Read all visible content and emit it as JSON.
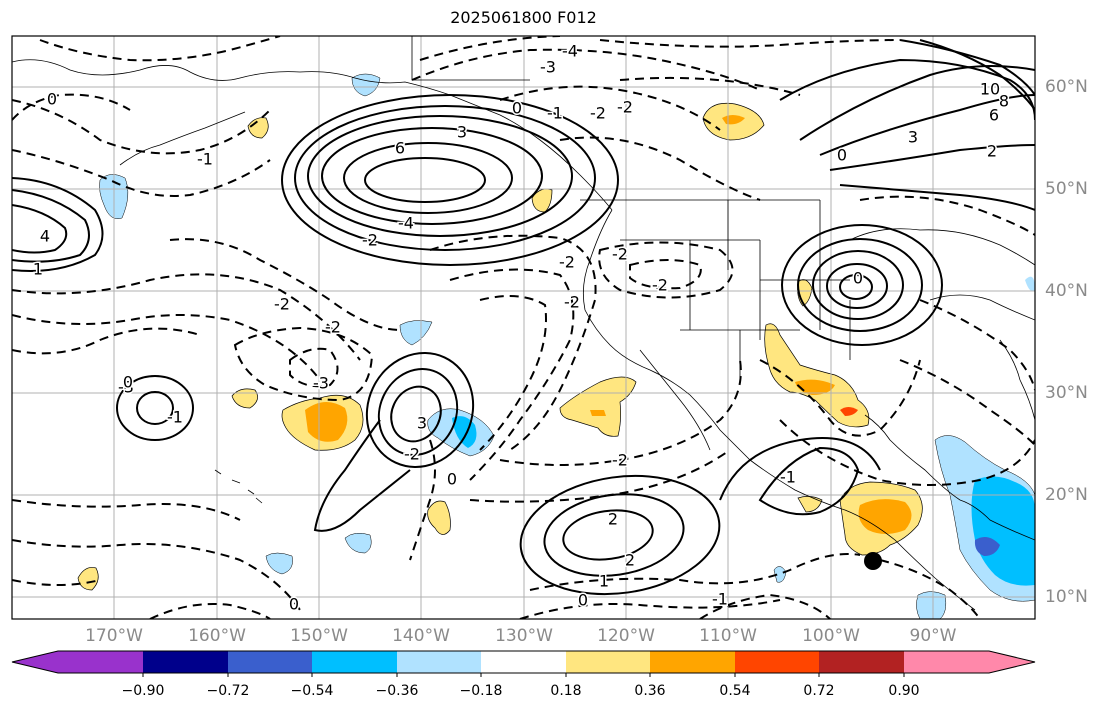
{
  "title": "2025061800 F012",
  "lat_labels": [
    "60°N",
    "50°N",
    "40°N",
    "30°N",
    "20°N",
    "10°N"
  ],
  "lon_labels": [
    "170°W",
    "160°W",
    "150°W",
    "140°W",
    "130°W",
    "120°W",
    "110°W",
    "100°W",
    "90°W"
  ],
  "colorbar": {
    "ticks": [
      "−0.90",
      "−0.72",
      "−0.54",
      "−0.36",
      "−0.18",
      "0.18",
      "0.36",
      "0.54",
      "0.72",
      "0.90"
    ],
    "colors": [
      "#9932cc",
      "#00008b",
      "#3a5fcd",
      "#00bfff",
      "#b0e2ff",
      "#ffffff",
      "#ffe680",
      "#ffa500",
      "#ff4500",
      "#b22222",
      "#ff88aa"
    ]
  },
  "contour_labels": [
    "-4",
    "-3",
    "0",
    "-1",
    "-2",
    "-2",
    "6",
    "3",
    "-4",
    "-2",
    "-2",
    "-2",
    "-2",
    "-2",
    "-3",
    "-2",
    "3",
    "-2",
    "0",
    "-2",
    "-2",
    "-1",
    "2",
    "2",
    "1",
    "0",
    "-1",
    "0",
    "-3",
    "0",
    "-1",
    "-1",
    "0",
    "10",
    "8",
    "6",
    "3",
    "2",
    "0",
    "4",
    "1",
    "0"
  ],
  "map_features": {
    "station_marker": "black-dot"
  }
}
